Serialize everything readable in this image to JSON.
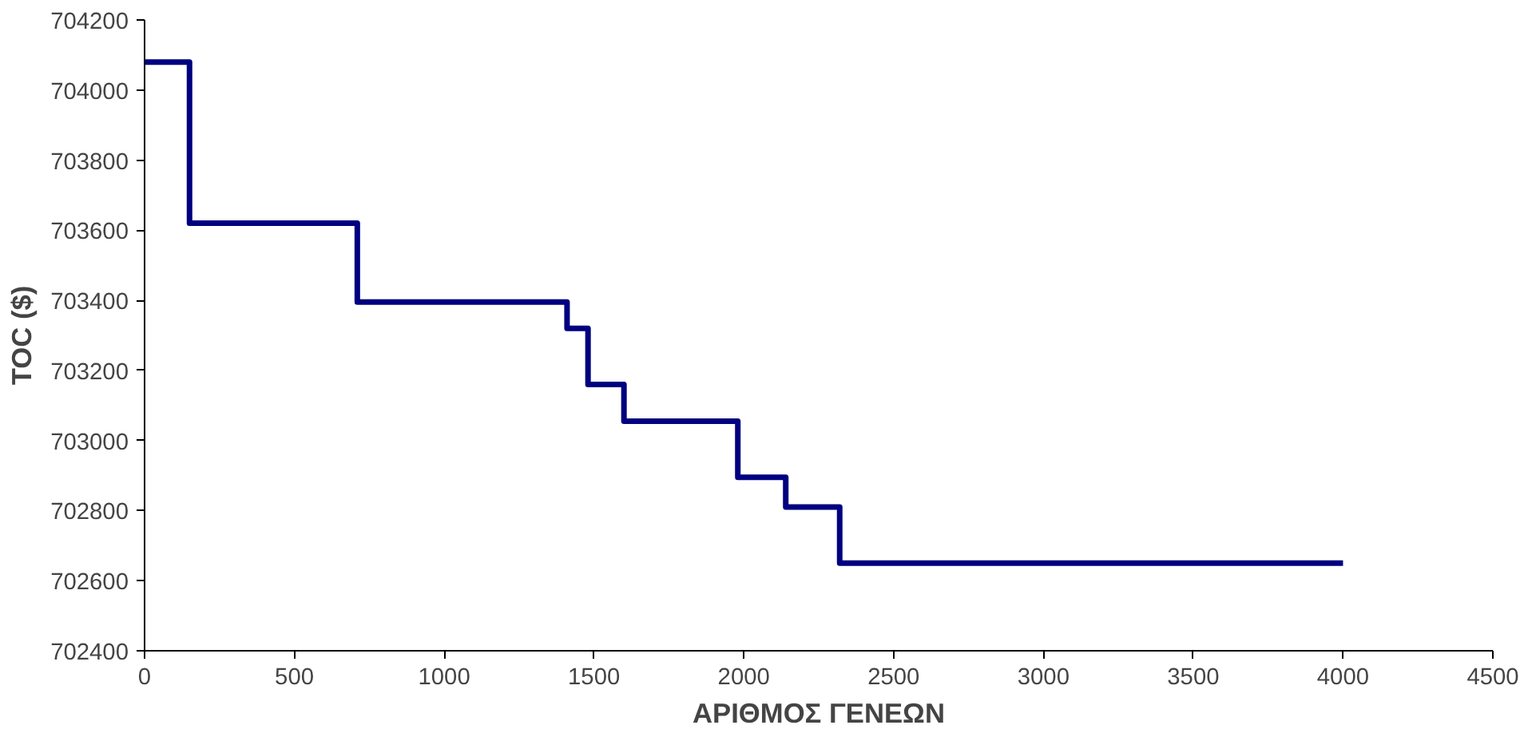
{
  "chart_data": {
    "type": "step",
    "xlabel": "ΑΡΙΘΜΟΣ ΓΕΝΕΩΝ",
    "ylabel": "TOC ($)",
    "x": [
      0,
      150,
      710,
      1410,
      1480,
      1600,
      1980,
      2140,
      2320,
      4000
    ],
    "series": [
      {
        "color": "#000080",
        "values": [
          704080,
          703620,
          703395,
          703320,
          703160,
          703055,
          702895,
          702810,
          702650,
          702650
        ]
      }
    ],
    "xlim": [
      0,
      4500
    ],
    "xticks": [
      0,
      500,
      1000,
      1500,
      2000,
      2500,
      3000,
      3500,
      4000,
      4500
    ],
    "ylim": [
      702400,
      704200
    ],
    "yticks": [
      702400,
      702600,
      702800,
      703000,
      703200,
      703400,
      703600,
      703800,
      704000,
      704200
    ],
    "grid": false,
    "marker": "none",
    "line_style": "solid"
  }
}
